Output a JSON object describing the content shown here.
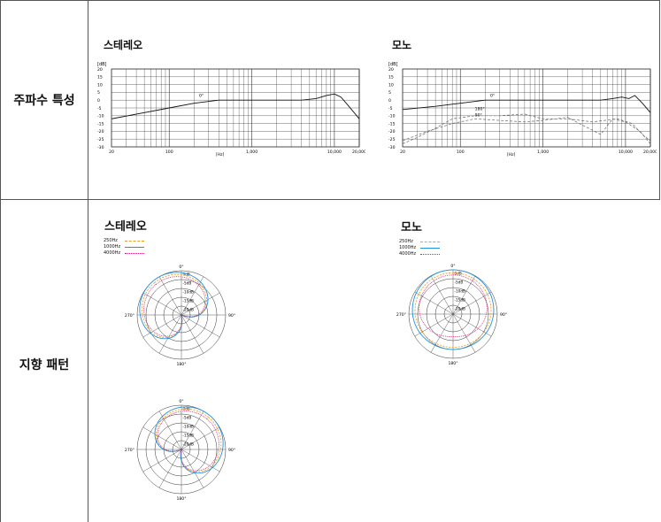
{
  "rows": {
    "frequency": {
      "label": "주파수 특성"
    },
    "polar": {
      "label": "지향 패턴"
    }
  },
  "frequency_charts": {
    "stereo": {
      "title": "스테레오",
      "y_unit": "[dB]",
      "x_unit": "[Hz]",
      "annot_0": "0°"
    },
    "mono": {
      "title": "모노",
      "y_unit": "[dB]",
      "x_unit": "[Hz]",
      "annot_0": "0°",
      "annot_180": "180°",
      "annot_90": "90°"
    }
  },
  "polar_charts": {
    "stereo": {
      "title": "스테레오"
    },
    "mono": {
      "title": "모노"
    }
  },
  "legend": [
    {
      "label": "250Hz",
      "color": "#f0a020",
      "style": "dashdot"
    },
    {
      "label": "1000Hz",
      "color": "#2090e0",
      "style": "solid"
    },
    {
      "label": "4000Hz",
      "color": "#d02070",
      "style": "dotted"
    }
  ],
  "polar_labels": {
    "top": "0°",
    "left": "270°",
    "right": "90°",
    "bottom": "180°",
    "rings": [
      "0dB",
      "-5dB",
      "-10dB",
      "-15dB",
      "-20dB"
    ]
  },
  "chart_data": [
    {
      "type": "line",
      "title": "스테레오",
      "ylabel": "[dB]",
      "xlabel": "[Hz]",
      "xscale": "log",
      "xlim": [
        20,
        20000
      ],
      "ylim": [
        -30,
        20
      ],
      "x_ticks": [
        "20",
        "100",
        "1,000",
        "10,000",
        "20,000"
      ],
      "y_ticks": [
        "20",
        "15",
        "10",
        "5",
        "0",
        "-5",
        "-10",
        "-15",
        "-20",
        "-25",
        "-30"
      ],
      "series": [
        {
          "name": "0°",
          "x": [
            20,
            50,
            100,
            200,
            400,
            1000,
            2000,
            4000,
            6000,
            8000,
            10000,
            12000,
            15000,
            20000
          ],
          "y": [
            -12,
            -8,
            -5,
            -2,
            0,
            0,
            0,
            0,
            1,
            3,
            4,
            2,
            -4,
            -12
          ]
        }
      ]
    },
    {
      "type": "line",
      "title": "모노",
      "ylabel": "[dB]",
      "xlabel": "[Hz]",
      "xscale": "log",
      "xlim": [
        20,
        20000
      ],
      "ylim": [
        -30,
        20
      ],
      "x_ticks": [
        "20",
        "100",
        "1,000",
        "10,000",
        "20,000"
      ],
      "y_ticks": [
        "20",
        "15",
        "10",
        "5",
        "0",
        "-5",
        "-10",
        "-15",
        "-20",
        "-25",
        "-30"
      ],
      "series": [
        {
          "name": "0°",
          "x": [
            20,
            50,
            100,
            200,
            500,
            1000,
            2000,
            5000,
            7000,
            9000,
            11000,
            13000,
            16000,
            20000
          ],
          "y": [
            -6,
            -4,
            -2,
            0,
            0,
            0,
            0,
            0,
            1,
            2,
            1,
            3,
            -2,
            -8
          ]
        },
        {
          "name": "180°",
          "x": [
            20,
            30,
            50,
            80,
            150,
            300,
            600,
            1000,
            2000,
            4000,
            8000,
            12000,
            16000,
            20000
          ],
          "y": [
            -28,
            -24,
            -18,
            -12,
            -10,
            -10,
            -9,
            -12,
            -12,
            -14,
            -12,
            -15,
            -22,
            -26
          ]
        },
        {
          "name": "90°",
          "x": [
            20,
            40,
            80,
            150,
            300,
            600,
            1000,
            2000,
            3000,
            5000,
            7000,
            10000,
            15000,
            20000
          ],
          "y": [
            -26,
            -20,
            -15,
            -12,
            -13,
            -14,
            -13,
            -11,
            -16,
            -22,
            -12,
            -14,
            -20,
            -28
          ]
        }
      ]
    }
  ]
}
